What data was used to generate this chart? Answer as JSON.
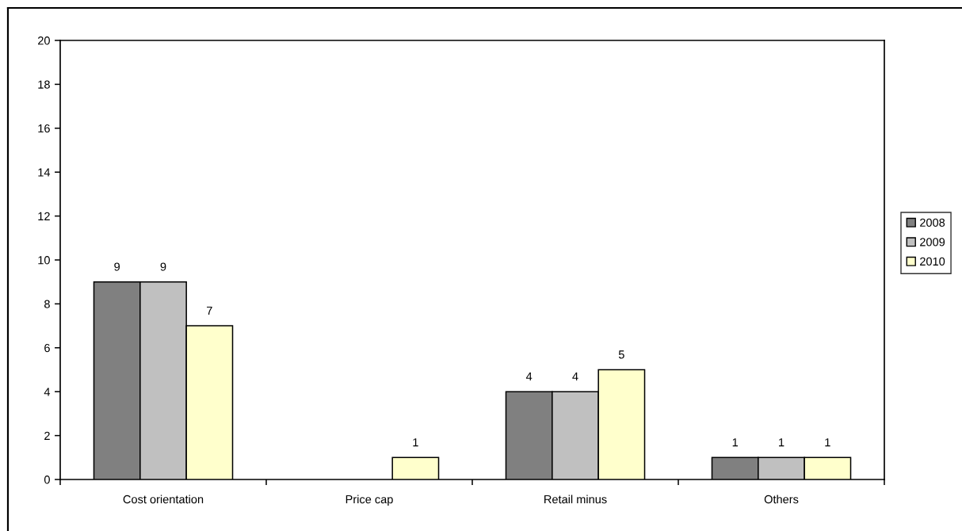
{
  "chart_data": {
    "type": "bar",
    "categories": [
      "Cost orientation",
      "Price cap",
      "Retail minus",
      "Others"
    ],
    "series": [
      {
        "name": "2008",
        "color": "#808080",
        "values": [
          9,
          null,
          4,
          1
        ]
      },
      {
        "name": "2009",
        "color": "#c0c0c0",
        "values": [
          9,
          null,
          4,
          1
        ]
      },
      {
        "name": "2010",
        "color": "#ffffcc",
        "values": [
          7,
          1,
          5,
          1
        ]
      }
    ],
    "ylim": [
      0,
      20
    ],
    "yticks": [
      0,
      2,
      4,
      6,
      8,
      10,
      12,
      14,
      16,
      18,
      20
    ],
    "legend": "right",
    "data_labels": true
  }
}
